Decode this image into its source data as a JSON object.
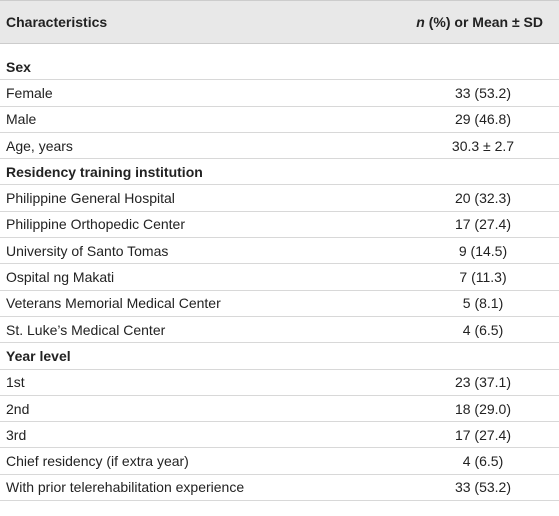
{
  "table": {
    "header": {
      "characteristics": "Characteristics",
      "value_italic": "n",
      "value_rest": "(%) or Mean ± SD"
    },
    "rows": [
      {
        "label": "Sex",
        "section": true
      },
      {
        "label": "Female",
        "value": "33 (53.2)"
      },
      {
        "label": "Male",
        "value": "29 (46.8)"
      },
      {
        "label": "Age, years",
        "value": "30.3 ± 2.7"
      },
      {
        "label": "Residency training institution",
        "section": true
      },
      {
        "label": "Philippine General Hospital",
        "value": "20 (32.3)"
      },
      {
        "label": "Philippine Orthopedic Center",
        "value": "17 (27.4)"
      },
      {
        "label": "University of Santo Tomas",
        "value": "9 (14.5)"
      },
      {
        "label": "Ospital ng Makati",
        "value": "7 (11.3)"
      },
      {
        "label": "Veterans Memorial Medical Center",
        "value": "5 (8.1)"
      },
      {
        "label": "St. Luke’s Medical Center",
        "value": "4 (6.5)"
      },
      {
        "label": "Year level",
        "section": true
      },
      {
        "label": "1st",
        "value": "23 (37.1)"
      },
      {
        "label": "2nd",
        "value": "18 (29.0)"
      },
      {
        "label": "3rd",
        "value": "17 (27.4)"
      },
      {
        "label": "Chief residency (if extra year)",
        "value": "4 (6.5)"
      },
      {
        "label": "With prior telerehabilitation experience",
        "value": "33 (53.2)"
      }
    ]
  }
}
